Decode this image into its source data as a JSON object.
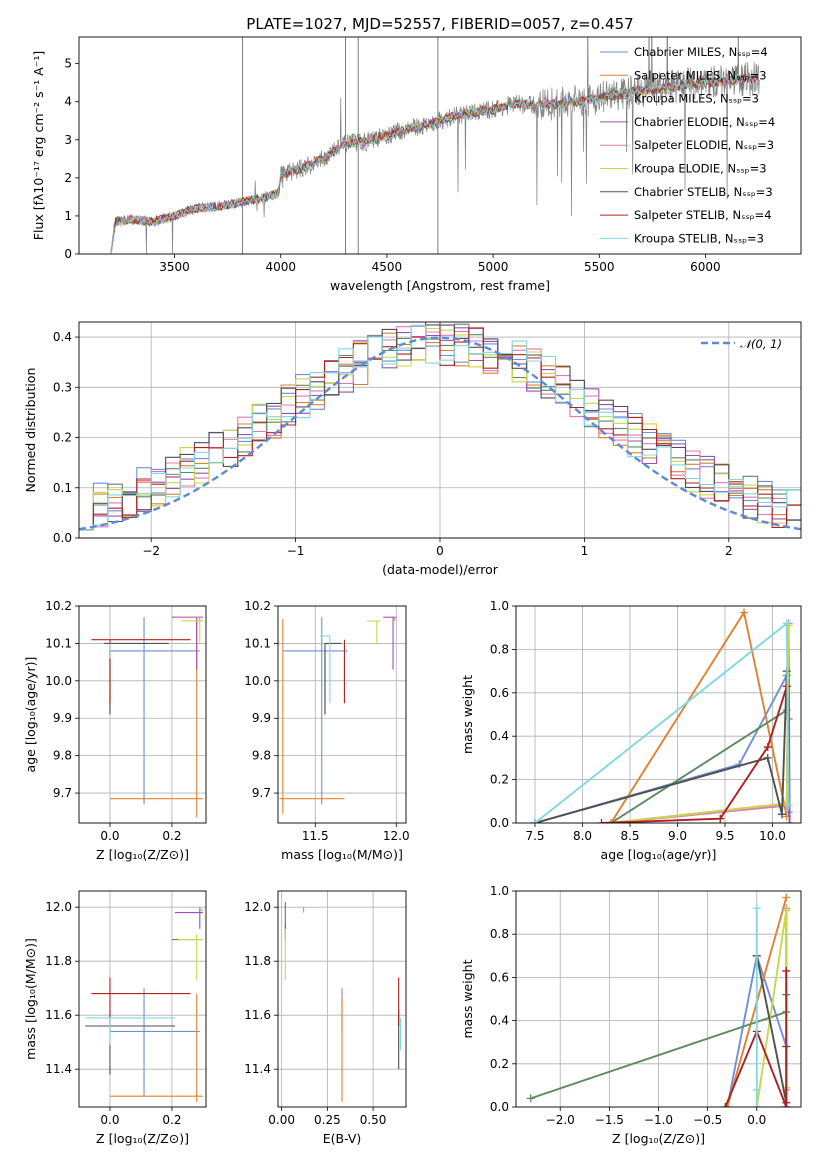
{
  "colors": {
    "Chabrier MILES": "#6f8fd8",
    "Salpeter MILES": "#e08030",
    "Kroupa MILES": "#5a8a64",
    "Chabrier ELODIE": "#9b50b5",
    "Salpeter ELODIE": "#e07ab6",
    "Kroupa ELODIE": "#c8d84a",
    "Chabrier STELIB": "#505050",
    "Salpeter STELIB": "#b02020",
    "Kroupa STELIB": "#80d8e0",
    "gauss": "#5b8ad6",
    "spectrum": "#808080"
  },
  "chart_data": [
    {
      "id": "spectrum",
      "type": "line",
      "title": "PLATE=1027, MJD=52557, FIBERID=0057, z=0.457",
      "xlabel": "wavelength [Angstrom, rest frame]",
      "ylabel": "Flux [fλ10⁻¹⁷ erg cm⁻² s⁻¹ A⁻¹]",
      "xlim": [
        3050,
        6450
      ],
      "ylim": [
        0,
        5.7
      ],
      "xticks": [
        "3500",
        "4000",
        "4500",
        "5000",
        "5500",
        "6000"
      ],
      "yticks": [
        "0",
        "1",
        "2",
        "3",
        "4",
        "5"
      ],
      "legend": [
        "Chabrier MILES, Nₛₛₚ=4",
        "Salpeter MILES, Nₛₛₚ=3",
        "Kroupa MILES, Nₛₛₚ=3",
        "Chabrier ELODIE, Nₛₛₚ=4",
        "Salpeter ELODIE, Nₛₛₚ=3",
        "Kroupa ELODIE, Nₛₛₚ=3",
        "Chabrier STELIB, Nₛₛₚ=3",
        "Salpeter STELIB, Nₛₛₚ=4",
        "Kroupa STELIB, Nₛₛₚ=3"
      ],
      "legend_position": "top-right",
      "continuum": [
        [
          3200,
          0
        ],
        [
          3220,
          0.85
        ],
        [
          3300,
          0.9
        ],
        [
          3400,
          0.85
        ],
        [
          3500,
          1.0
        ],
        [
          3600,
          1.2
        ],
        [
          3700,
          1.25
        ],
        [
          3800,
          1.35
        ],
        [
          3900,
          1.45
        ],
        [
          3990,
          1.6
        ],
        [
          4000,
          2.1
        ],
        [
          4100,
          2.25
        ],
        [
          4200,
          2.5
        ],
        [
          4300,
          2.9
        ],
        [
          4400,
          2.95
        ],
        [
          4500,
          3.1
        ],
        [
          4600,
          3.3
        ],
        [
          4700,
          3.4
        ],
        [
          4800,
          3.6
        ],
        [
          4900,
          3.7
        ],
        [
          5000,
          3.8
        ],
        [
          5100,
          3.95
        ],
        [
          5200,
          3.9
        ],
        [
          5300,
          3.95
        ],
        [
          5400,
          4.0
        ],
        [
          5500,
          4.1
        ],
        [
          5600,
          4.2
        ],
        [
          5700,
          4.3
        ],
        [
          5800,
          4.35
        ],
        [
          5900,
          4.45
        ],
        [
          6000,
          4.5
        ],
        [
          6100,
          4.55
        ],
        [
          6200,
          4.6
        ],
        [
          6260,
          4.6
        ]
      ]
    },
    {
      "id": "histogram",
      "type": "histogram",
      "xlabel": "(data-model)/error",
      "ylabel": "Normed distribution",
      "xlim": [
        -2.5,
        2.5
      ],
      "ylim": [
        0,
        0.43
      ],
      "xticks": [
        "−2",
        "−1",
        "0",
        "1",
        "2"
      ],
      "yticks": [
        "0.0",
        "0.1",
        "0.2",
        "0.3",
        "0.4"
      ],
      "legend": [
        "𝒩(0, 1)"
      ],
      "legend_position": "top-right",
      "bins": [
        -2.5,
        2.5,
        50
      ]
    },
    {
      "id": "z_age",
      "type": "errorbar",
      "xlabel": "Z [log₁₀(Z/Z⊙)]",
      "ylabel": "age  [log₁₀(age/yr)]",
      "xlim": [
        -0.1,
        0.31
      ],
      "ylim": [
        9.62,
        10.2
      ],
      "xticks": [
        "0.0",
        "0.2"
      ],
      "yticks": [
        "9.7",
        "9.8",
        "9.9",
        "10.0",
        "10.1",
        "10.2"
      ],
      "points": [
        {
          "model": "Chabrier MILES",
          "x": 0.11,
          "xerr": [
            0.11,
            0.18
          ],
          "y": 10.08,
          "yerr": [
            0.41,
            0.09
          ]
        },
        {
          "model": "Salpeter MILES",
          "x": 0.28,
          "xerr": [
            0.28,
            0.02
          ],
          "y": 9.685,
          "yerr": [
            0.05,
            0.48
          ]
        },
        {
          "model": "Kroupa MILES",
          "x": 0.0,
          "xerr": [
            0.0,
            0.0
          ],
          "y": 10.08,
          "yerr": [
            0.17,
            0.0
          ]
        },
        {
          "model": "Chabrier ELODIE",
          "x": 0.28,
          "xerr": [
            0.08,
            0.02
          ],
          "y": 10.17,
          "yerr": [
            0.14,
            0.0
          ]
        },
        {
          "model": "Salpeter ELODIE",
          "x": 0.29,
          "xerr": [
            0.08,
            0.01
          ],
          "y": 10.17,
          "yerr": [
            0.01,
            0.0
          ]
        },
        {
          "model": "Kroupa ELODIE",
          "x": 0.29,
          "xerr": [
            0.06,
            0.01
          ],
          "y": 10.16,
          "yerr": [
            0.06,
            0.0
          ]
        },
        {
          "model": "Chabrier STELIB",
          "x": 0.0,
          "xerr": [
            0.02,
            0.19
          ],
          "y": 10.1,
          "yerr": [
            0.19,
            0.0
          ]
        },
        {
          "model": "Salpeter STELIB",
          "x": 0.0,
          "xerr": [
            0.06,
            0.26
          ],
          "y": 10.11,
          "yerr": [
            0.17,
            0.0
          ]
        },
        {
          "model": "Kroupa STELIB",
          "x": 0.0,
          "xerr": [
            0.0,
            0.0
          ],
          "y": 10.1,
          "yerr": [
            0.04,
            0.0
          ]
        }
      ]
    },
    {
      "id": "mass_age",
      "type": "errorbar",
      "xlabel": "mass [log₁₀(M/M⊙)]",
      "ylabel": "",
      "xlim": [
        11.27,
        12.06
      ],
      "ylim": [
        9.62,
        10.2
      ],
      "xticks": [
        "11.5",
        "12.0"
      ],
      "yticks": [
        "9.7",
        "9.8",
        "9.9",
        "10.0",
        "10.1",
        "10.2"
      ],
      "points": [
        {
          "model": "Chabrier MILES",
          "x": 11.54,
          "xerr": [
            0.24,
            0.16
          ],
          "y": 10.08,
          "yerr": [
            0.41,
            0.09
          ]
        },
        {
          "model": "Salpeter MILES",
          "x": 11.3,
          "xerr": [
            0.02,
            0.38
          ],
          "y": 9.685,
          "yerr": [
            0.04,
            0.48
          ]
        },
        {
          "model": "Kroupa MILES",
          "x": 11.56,
          "xerr": [
            0.0,
            0.0
          ],
          "y": 10.08,
          "yerr": [
            0.17,
            0.0
          ]
        },
        {
          "model": "Chabrier ELODIE",
          "x": 11.98,
          "xerr": [
            0.06,
            0.02
          ],
          "y": 10.17,
          "yerr": [
            0.14,
            0.0
          ]
        },
        {
          "model": "Salpeter ELODIE",
          "x": 11.99,
          "xerr": [
            0.0,
            0.01
          ],
          "y": 10.17,
          "yerr": [
            0.01,
            0.0
          ]
        },
        {
          "model": "Kroupa ELODIE",
          "x": 11.88,
          "xerr": [
            0.06,
            0.02
          ],
          "y": 10.16,
          "yerr": [
            0.06,
            0.0
          ]
        },
        {
          "model": "Chabrier STELIB",
          "x": 11.56,
          "xerr": [
            0.0,
            0.1
          ],
          "y": 10.1,
          "yerr": [
            0.19,
            0.0
          ]
        },
        {
          "model": "Salpeter STELIB",
          "x": 11.68,
          "xerr": [
            0.0,
            0.0
          ],
          "y": 10.11,
          "yerr": [
            0.17,
            0.0
          ]
        },
        {
          "model": "Kroupa STELIB",
          "x": 11.59,
          "xerr": [
            0.06,
            0.0
          ],
          "y": 10.12,
          "yerr": [
            0.18,
            0.0
          ]
        }
      ]
    },
    {
      "id": "age_weight",
      "type": "line",
      "xlabel": "age  [log₁₀(age/yr)]",
      "ylabel": "mass weight",
      "xlim": [
        7.3,
        10.3
      ],
      "ylim": [
        0,
        1.0
      ],
      "xticks": [
        "7.5",
        "8.0",
        "8.5",
        "9.0",
        "9.5",
        "10.0"
      ],
      "yticks": [
        "0.0",
        "0.2",
        "0.4",
        "0.6",
        "0.8",
        "1.0"
      ],
      "series": [
        {
          "model": "Chabrier MILES",
          "x": [
            7.5,
            9.65,
            10.15,
            10.17
          ],
          "y": [
            0.0,
            0.27,
            0.68,
            0.05
          ]
        },
        {
          "model": "Salpeter MILES",
          "x": [
            8.3,
            9.7,
            10.15
          ],
          "y": [
            0.0,
            0.97,
            0.03
          ]
        },
        {
          "model": "Kroupa MILES",
          "x": [
            8.3,
            10.15,
            10.17
          ],
          "y": [
            0.0,
            0.52,
            0.48
          ]
        },
        {
          "model": "Chabrier ELODIE",
          "x": [
            8.3,
            10.15,
            10.17,
            10.18
          ],
          "y": [
            0.0,
            0.09,
            0.91,
            0.0
          ]
        },
        {
          "model": "Salpeter ELODIE",
          "x": [
            8.3,
            10.15,
            10.17
          ],
          "y": [
            0.0,
            0.08,
            0.92
          ]
        },
        {
          "model": "Kroupa ELODIE",
          "x": [
            8.3,
            10.15,
            10.17
          ],
          "y": [
            0.0,
            0.09,
            0.91
          ]
        },
        {
          "model": "Chabrier STELIB",
          "x": [
            7.5,
            9.95,
            10.1,
            10.15
          ],
          "y": [
            0.0,
            0.3,
            0.04,
            0.7
          ]
        },
        {
          "model": "Salpeter STELIB",
          "x": [
            8.2,
            9.45,
            9.95,
            10.15
          ],
          "y": [
            0.0,
            0.02,
            0.35,
            0.63
          ]
        },
        {
          "model": "Kroupa STELIB",
          "x": [
            7.5,
            10.15,
            10.17
          ],
          "y": [
            0.0,
            0.92,
            0.08
          ]
        }
      ]
    },
    {
      "id": "z_mass",
      "type": "errorbar",
      "xlabel": "Z [log₁₀(Z/Z⊙)]",
      "ylabel": "mass [log₁₀(M/M⊙)]",
      "xlim": [
        -0.1,
        0.31
      ],
      "ylim": [
        11.26,
        12.06
      ],
      "xticks": [
        "0.0",
        "0.2"
      ],
      "yticks": [
        "11.4",
        "11.6",
        "11.8",
        "12.0"
      ],
      "points": [
        {
          "model": "Chabrier MILES",
          "x": 0.11,
          "xerr": [
            0.11,
            0.18
          ],
          "y": 11.54,
          "yerr": [
            0.24,
            0.16
          ]
        },
        {
          "model": "Salpeter MILES",
          "x": 0.28,
          "xerr": [
            0.28,
            0.02
          ],
          "y": 11.3,
          "yerr": [
            0.02,
            0.38
          ]
        },
        {
          "model": "Kroupa MILES",
          "x": 0.28,
          "xerr": [
            0.08,
            0.02
          ],
          "y": 11.88,
          "yerr": [
            0.0,
            0.0
          ]
        },
        {
          "model": "Chabrier ELODIE",
          "x": 0.29,
          "xerr": [
            0.08,
            0.01
          ],
          "y": 11.98,
          "yerr": [
            0.06,
            0.02
          ]
        },
        {
          "model": "Salpeter ELODIE",
          "x": 0.29,
          "xerr": [
            0.0,
            0.01
          ],
          "y": 11.99,
          "yerr": [
            0.0,
            0.01
          ]
        },
        {
          "model": "Kroupa ELODIE",
          "x": 0.28,
          "xerr": [
            0.06,
            0.02
          ],
          "y": 11.88,
          "yerr": [
            0.15,
            0.02
          ]
        },
        {
          "model": "Chabrier STELIB",
          "x": 0.0,
          "xerr": [
            0.08,
            0.21
          ],
          "y": 11.56,
          "yerr": [
            0.18,
            0.06
          ]
        },
        {
          "model": "Salpeter STELIB",
          "x": 0.0,
          "xerr": [
            0.06,
            0.26
          ],
          "y": 11.68,
          "yerr": [
            0.12,
            0.06
          ]
        },
        {
          "model": "Kroupa STELIB",
          "x": 0.0,
          "xerr": [
            0.08,
            0.21
          ],
          "y": 11.59,
          "yerr": [
            0.1,
            0.0
          ]
        }
      ]
    },
    {
      "id": "ebv_mass",
      "type": "errorbar",
      "xlabel": "E(B-V)",
      "ylabel": "",
      "xlim": [
        -0.02,
        0.68
      ],
      "ylim": [
        11.26,
        12.06
      ],
      "xticks": [
        "0.00",
        "0.25",
        "0.50"
      ],
      "yticks": [
        "11.4",
        "11.6",
        "11.8",
        "12.0"
      ],
      "points": [
        {
          "model": "Chabrier MILES",
          "x": 0.33,
          "xerr": [
            0.0,
            0.0
          ],
          "y": 11.54,
          "yerr": [
            0.0,
            0.16
          ]
        },
        {
          "model": "Salpeter MILES",
          "x": 0.33,
          "xerr": [
            0.0,
            0.0
          ],
          "y": 11.3,
          "yerr": [
            0.02,
            0.37
          ]
        },
        {
          "model": "Kroupa MILES",
          "x": 0.02,
          "xerr": [
            0.0,
            0.0
          ],
          "y": 11.88,
          "yerr": [
            0.0,
            0.06
          ]
        },
        {
          "model": "Chabrier ELODIE",
          "x": 0.02,
          "xerr": [
            0.0,
            0.0
          ],
          "y": 11.98,
          "yerr": [
            0.06,
            0.04
          ]
        },
        {
          "model": "Salpeter ELODIE",
          "x": 0.12,
          "xerr": [
            0.0,
            0.0
          ],
          "y": 11.98,
          "yerr": [
            0.0,
            0.02
          ]
        },
        {
          "model": "Kroupa ELODIE",
          "x": 0.02,
          "xerr": [
            0.0,
            0.0
          ],
          "y": 11.88,
          "yerr": [
            0.15,
            0.04
          ]
        },
        {
          "model": "Chabrier STELIB",
          "x": 0.64,
          "xerr": [
            0.0,
            0.0
          ],
          "y": 11.56,
          "yerr": [
            0.16,
            0.06
          ]
        },
        {
          "model": "Salpeter STELIB",
          "x": 0.64,
          "xerr": [
            0.0,
            0.0
          ],
          "y": 11.68,
          "yerr": [
            0.12,
            0.06
          ]
        },
        {
          "model": "Kroupa STELIB",
          "x": 0.65,
          "xerr": [
            0.0,
            0.0
          ],
          "y": 11.59,
          "yerr": [
            0.12,
            0.0
          ]
        }
      ]
    },
    {
      "id": "z_weight",
      "type": "line",
      "xlabel": "Z [log₁₀(Z/Z⊙)]",
      "ylabel": "mass weight",
      "xlim": [
        -2.45,
        0.45
      ],
      "ylim": [
        0,
        1.0
      ],
      "xticks": [
        "−2.0",
        "−1.5",
        "−1.0",
        "−0.5",
        "0.0"
      ],
      "yticks": [
        "0.0",
        "0.2",
        "0.4",
        "0.6",
        "0.8",
        "1.0"
      ],
      "series": [
        {
          "model": "Chabrier MILES",
          "x": [
            -0.3,
            0.0,
            0.3
          ],
          "y": [
            0.0,
            0.7,
            0.28
          ]
        },
        {
          "model": "Salpeter MILES",
          "x": [
            -0.3,
            0.3
          ],
          "y": [
            0.0,
            0.97
          ]
        },
        {
          "model": "Kroupa MILES",
          "x": [
            -2.3,
            0.3,
            0.3
          ],
          "y": [
            0.04,
            0.44,
            0.52
          ]
        },
        {
          "model": "Chabrier ELODIE",
          "x": [
            0.3,
            0.3
          ],
          "y": [
            0.0,
            0.91
          ]
        },
        {
          "model": "Salpeter ELODIE",
          "x": [
            0.3,
            0.3
          ],
          "y": [
            0.08,
            0.92
          ]
        },
        {
          "model": "Kroupa ELODIE",
          "x": [
            0.0,
            0.3,
            0.3
          ],
          "y": [
            0.0,
            0.91,
            0.09
          ]
        },
        {
          "model": "Chabrier STELIB",
          "x": [
            0.0,
            0.3,
            0.3
          ],
          "y": [
            0.7,
            0.02,
            0.28
          ]
        },
        {
          "model": "Salpeter STELIB",
          "x": [
            -0.32,
            0.0,
            0.3,
            0.3
          ],
          "y": [
            0.0,
            0.35,
            0.0,
            0.63
          ]
        },
        {
          "model": "Kroupa STELIB",
          "x": [
            0.0,
            0.0,
            0.0
          ],
          "y": [
            0.0,
            0.92,
            0.08
          ]
        }
      ]
    }
  ]
}
